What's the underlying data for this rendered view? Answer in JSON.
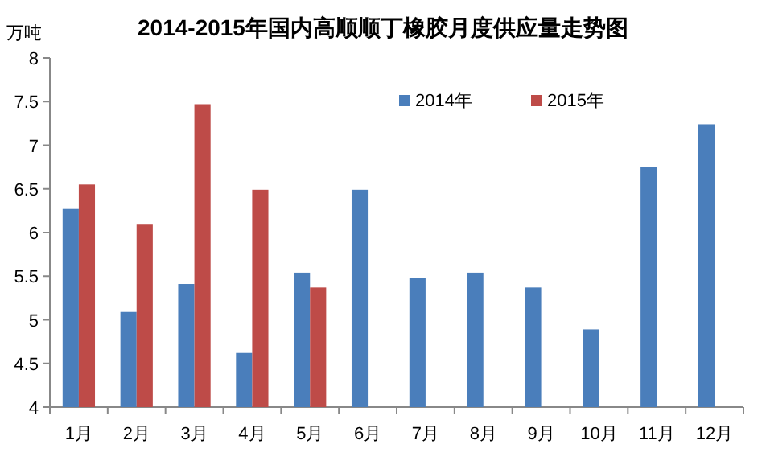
{
  "chart_data": {
    "type": "bar",
    "title": "2014-2015年国内高顺顺丁橡胶月度供应量走势图",
    "ylabel": "万吨",
    "categories": [
      "1月",
      "2月",
      "3月",
      "4月",
      "5月",
      "6月",
      "7月",
      "8月",
      "9月",
      "10月",
      "11月",
      "12月"
    ],
    "series": [
      {
        "name": "2014年",
        "color": "#4a7ebb",
        "values": [
          6.27,
          5.09,
          5.41,
          4.62,
          5.54,
          6.49,
          5.48,
          5.54,
          5.37,
          4.89,
          6.75,
          7.24
        ]
      },
      {
        "name": "2015年",
        "color": "#be4b48",
        "values": [
          6.55,
          6.09,
          7.47,
          6.49,
          5.37,
          null,
          null,
          null,
          null,
          null,
          null,
          null
        ]
      }
    ],
    "ylim": [
      4,
      8
    ],
    "yticks": [
      4,
      4.5,
      5,
      5.5,
      6,
      6.5,
      7,
      7.5,
      8
    ],
    "grid": false,
    "legend": "top right"
  }
}
